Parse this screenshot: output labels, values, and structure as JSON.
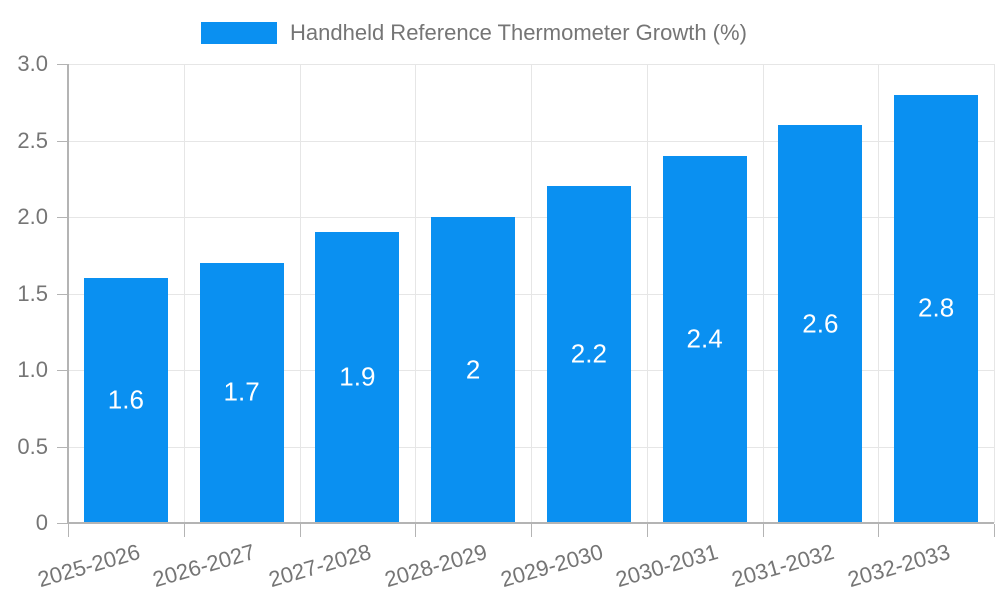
{
  "chart_data": {
    "type": "bar",
    "title": "Handheld Reference Thermometer Growth (%)",
    "categories": [
      "2025-2026",
      "2026-2027",
      "2027-2028",
      "2028-2029",
      "2029-2030",
      "2030-2031",
      "2031-2032",
      "2032-2033"
    ],
    "values": [
      1.6,
      1.7,
      1.9,
      2,
      2.2,
      2.4,
      2.6,
      2.8
    ],
    "value_labels": [
      "1.6",
      "1.7",
      "1.9",
      "2",
      "2.2",
      "2.4",
      "2.6",
      "2.8"
    ],
    "xlabel": "",
    "ylabel": "",
    "ylim": [
      0,
      3
    ],
    "yticks": [
      0,
      0.5,
      1,
      1.5,
      2,
      2.5,
      3
    ],
    "ytick_labels": [
      "0",
      "0.5",
      "1.0",
      "1.5",
      "2.0",
      "2.5",
      "3.0"
    ],
    "grid": true,
    "legend_position": "top"
  },
  "legend": {
    "series_label": "Handheld Reference Thermometer Growth (%)"
  },
  "colors": {
    "bar": "#0A90F1",
    "bar_label": "#ffffff",
    "grid": "#e6e6e6",
    "axis": "#b4b4b4",
    "tick_text": "#757575"
  }
}
